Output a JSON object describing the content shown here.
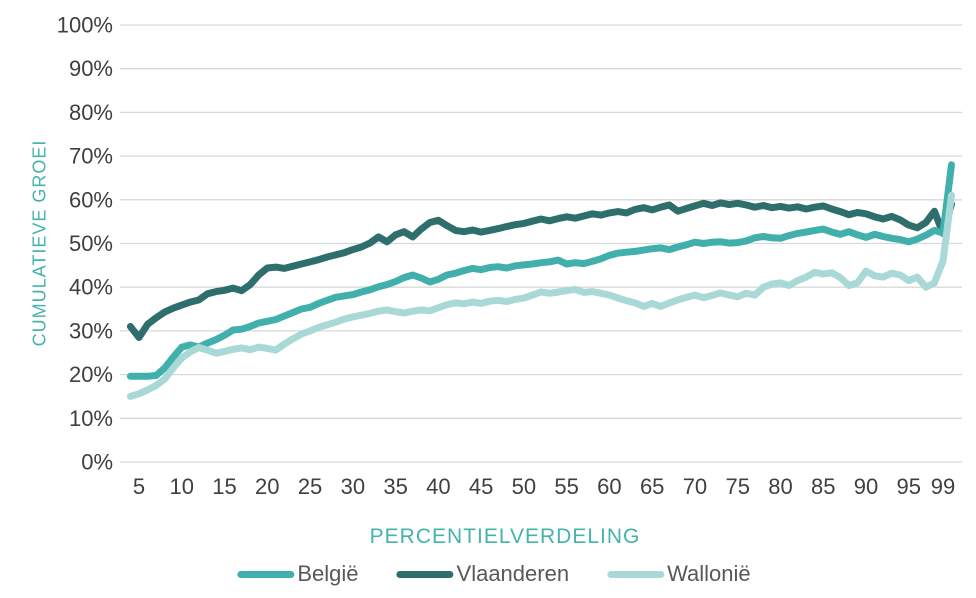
{
  "chart_data": {
    "type": "line",
    "title": "",
    "xlabel": "PERCENTIELVERDELING",
    "ylabel": "CUMULATIEVE GROEI",
    "x": [
      4,
      5,
      6,
      7,
      8,
      9,
      10,
      11,
      12,
      13,
      14,
      15,
      16,
      17,
      18,
      19,
      20,
      21,
      22,
      23,
      24,
      25,
      26,
      27,
      28,
      29,
      30,
      31,
      32,
      33,
      34,
      35,
      36,
      37,
      38,
      39,
      40,
      41,
      42,
      43,
      44,
      45,
      46,
      47,
      48,
      49,
      50,
      51,
      52,
      53,
      54,
      55,
      56,
      57,
      58,
      59,
      60,
      61,
      62,
      63,
      64,
      65,
      66,
      67,
      68,
      69,
      70,
      71,
      72,
      73,
      74,
      75,
      76,
      77,
      78,
      79,
      80,
      81,
      82,
      83,
      84,
      85,
      86,
      87,
      88,
      89,
      90,
      91,
      92,
      93,
      94,
      95,
      96,
      97,
      98,
      99,
      100
    ],
    "x_ticks": [
      5,
      10,
      15,
      20,
      25,
      30,
      35,
      40,
      45,
      50,
      55,
      60,
      65,
      70,
      75,
      80,
      85,
      90,
      95,
      99
    ],
    "y_ticks": [
      0,
      10,
      20,
      30,
      40,
      50,
      60,
      70,
      80,
      90,
      100
    ],
    "y_tick_suffix": "%",
    "ylim": [
      0,
      100
    ],
    "grid": "horizontal-only",
    "legend_position": "bottom",
    "series": [
      {
        "name": "België",
        "color": "#41b0ac",
        "values": [
          19.6,
          19.6,
          19.6,
          19.8,
          21.5,
          24.0,
          26.3,
          26.8,
          26.3,
          27.2,
          28.0,
          29.0,
          30.2,
          30.4,
          31.0,
          31.8,
          32.2,
          32.6,
          33.4,
          34.2,
          35.0,
          35.4,
          36.3,
          37.0,
          37.7,
          38.0,
          38.3,
          38.9,
          39.4,
          40.1,
          40.6,
          41.3,
          42.2,
          42.8,
          42.1,
          41.2,
          41.8,
          42.8,
          43.2,
          43.8,
          44.3,
          44.0,
          44.5,
          44.7,
          44.4,
          44.9,
          45.1,
          45.3,
          45.6,
          45.8,
          46.2,
          45.3,
          45.6,
          45.4,
          45.9,
          46.5,
          47.3,
          47.8,
          48.0,
          48.2,
          48.5,
          48.8,
          49.0,
          48.6,
          49.2,
          49.7,
          50.3,
          50.0,
          50.3,
          50.4,
          50.1,
          50.2,
          50.6,
          51.3,
          51.6,
          51.3,
          51.2,
          51.8,
          52.3,
          52.6,
          53.0,
          53.3,
          52.6,
          52.1,
          52.7,
          52.0,
          51.4,
          52.1,
          51.6,
          51.2,
          50.9,
          50.4,
          51.0,
          51.9,
          53.0,
          52.4,
          68.0
        ]
      },
      {
        "name": "Vlaanderen",
        "color": "#2e6f6d",
        "values": [
          31.0,
          28.5,
          31.5,
          33.0,
          34.3,
          35.2,
          35.9,
          36.6,
          37.1,
          38.5,
          39.0,
          39.3,
          39.8,
          39.2,
          40.6,
          42.8,
          44.4,
          44.6,
          44.3,
          44.8,
          45.3,
          45.8,
          46.3,
          46.9,
          47.4,
          47.9,
          48.6,
          49.2,
          50.1,
          51.5,
          50.4,
          52.0,
          52.7,
          51.5,
          53.3,
          54.8,
          55.3,
          54.1,
          53.0,
          52.7,
          53.1,
          52.6,
          53.0,
          53.4,
          53.9,
          54.3,
          54.6,
          55.1,
          55.6,
          55.2,
          55.7,
          56.1,
          55.8,
          56.3,
          56.8,
          56.5,
          57.0,
          57.3,
          57.0,
          57.8,
          58.2,
          57.7,
          58.3,
          58.8,
          57.4,
          58.0,
          58.6,
          59.2,
          58.7,
          59.3,
          58.9,
          59.2,
          58.8,
          58.3,
          58.7,
          58.2,
          58.5,
          58.1,
          58.4,
          57.9,
          58.3,
          58.6,
          57.9,
          57.3,
          56.6,
          57.1,
          56.8,
          56.1,
          55.6,
          56.2,
          55.4,
          54.2,
          53.6,
          54.8,
          57.4,
          52.3,
          59.0
        ]
      },
      {
        "name": "Wallonië",
        "color": "#a9d9d6",
        "values": [
          15.0,
          15.6,
          16.5,
          17.5,
          19.0,
          21.5,
          23.8,
          25.2,
          26.2,
          25.6,
          24.9,
          25.3,
          25.8,
          26.1,
          25.7,
          26.3,
          26.0,
          25.6,
          27.0,
          28.2,
          29.3,
          30.0,
          30.8,
          31.4,
          32.0,
          32.7,
          33.2,
          33.6,
          34.0,
          34.5,
          34.8,
          34.4,
          34.1,
          34.5,
          34.8,
          34.6,
          35.3,
          36.0,
          36.4,
          36.2,
          36.6,
          36.3,
          36.8,
          37.0,
          36.7,
          37.2,
          37.5,
          38.2,
          38.9,
          38.6,
          38.9,
          39.2,
          39.5,
          38.8,
          39.0,
          38.6,
          38.2,
          37.5,
          36.9,
          36.4,
          35.6,
          36.3,
          35.6,
          36.4,
          37.1,
          37.7,
          38.2,
          37.6,
          38.1,
          38.7,
          38.2,
          37.8,
          38.6,
          38.2,
          40.0,
          40.7,
          41.0,
          40.4,
          41.5,
          42.3,
          43.4,
          43.0,
          43.3,
          42.2,
          40.4,
          41.0,
          43.7,
          42.6,
          42.3,
          43.2,
          42.8,
          41.5,
          42.3,
          40.0,
          41.0,
          46.0,
          61.0
        ]
      }
    ]
  },
  "colors": {
    "axis_title": "#44b3ae",
    "tick_label": "#3f3f3f",
    "gridline": "#d9d9d9",
    "legend_label": "#57585a",
    "background": "#ffffff"
  }
}
